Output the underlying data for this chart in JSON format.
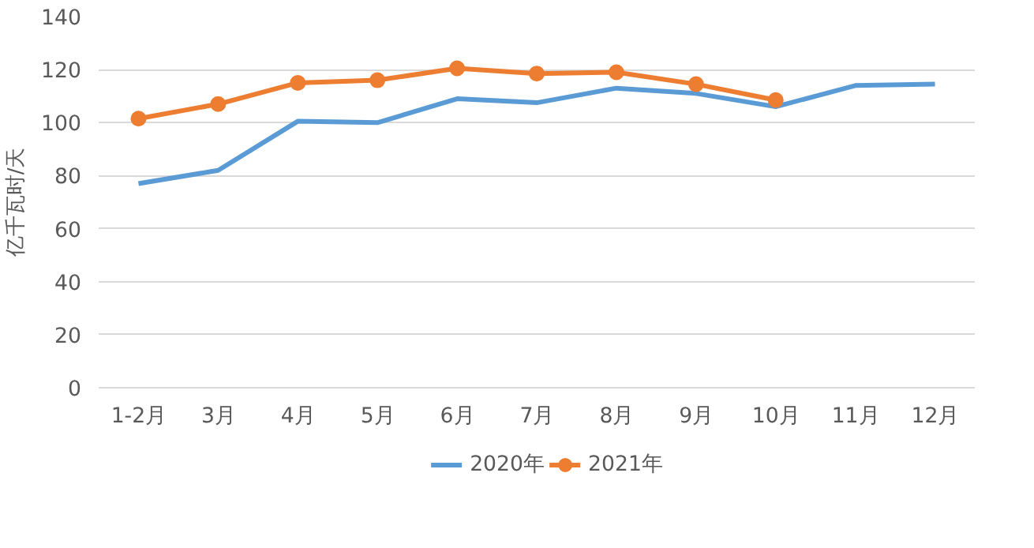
{
  "chart_data": {
    "type": "line",
    "categories": [
      "1-2月",
      "3月",
      "4月",
      "5月",
      "6月",
      "7月",
      "8月",
      "9月",
      "10月",
      "11月",
      "12月"
    ],
    "ylabel": "亿千瓦时/天",
    "ylim": [
      0,
      140
    ],
    "yticks": [
      0,
      20,
      40,
      60,
      80,
      100,
      120,
      140
    ],
    "grid": "y",
    "legend": "bottom",
    "line_style": "solid",
    "series": [
      {
        "name": "2020年",
        "color": "#5b9bd5",
        "marker": "none",
        "values": [
          77,
          82,
          100.5,
          100,
          109,
          107.5,
          113,
          111,
          106,
          114,
          114.5
        ]
      },
      {
        "name": "2021年",
        "color": "#ed7d31",
        "marker": "circle",
        "values": [
          101.5,
          107,
          115,
          116,
          120.5,
          118.5,
          119,
          114.5,
          108.5,
          null,
          null
        ]
      }
    ]
  }
}
